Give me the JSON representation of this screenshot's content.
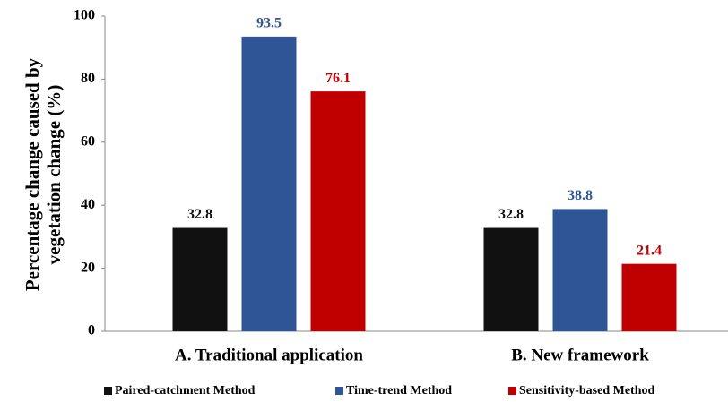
{
  "chart_data": {
    "type": "bar",
    "ylabel": [
      "Percentage change caused by",
      "vegetation change    (%)"
    ],
    "categories": [
      "A. Traditional application",
      "B. New framework"
    ],
    "series": [
      {
        "name": "Paired-catchment Method",
        "color": "#111111",
        "values": [
          32.8,
          32.8
        ]
      },
      {
        "name": "Time-trend  Method",
        "color": "#2f5597",
        "values": [
          93.5,
          38.8
        ]
      },
      {
        "name": "Sensitivity-based Method",
        "color": "#c00000",
        "values": [
          76.1,
          21.4
        ]
      }
    ],
    "ylim": [
      0,
      100
    ],
    "yticks": [
      0,
      20,
      40,
      60,
      80,
      100
    ],
    "grid": false,
    "legend": "bottom"
  }
}
